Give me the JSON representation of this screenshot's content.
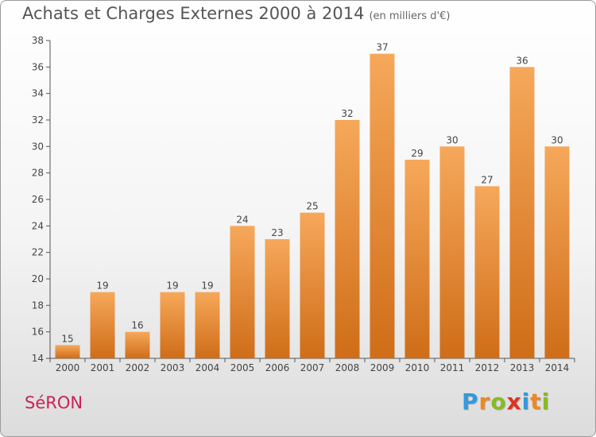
{
  "title": "Achats et Charges Externes 2000 à 2014",
  "unit_label": "(en milliers d'€)",
  "commune": "SéRON",
  "brand": {
    "letters": [
      "P",
      "r",
      "o",
      "x",
      "i",
      "t",
      "i"
    ],
    "colors": [
      "#3399dd",
      "#ee8822",
      "#88bb22",
      "#dd3322",
      "#3399dd",
      "#ee8822",
      "#88bb22"
    ]
  },
  "chart_data": {
    "type": "bar",
    "title": "Achats et Charges Externes 2000 à 2014",
    "categories": [
      "2000",
      "2001",
      "2002",
      "2003",
      "2004",
      "2005",
      "2006",
      "2007",
      "2008",
      "2009",
      "2010",
      "2011",
      "2012",
      "2013",
      "2014"
    ],
    "values": [
      15,
      19,
      16,
      19,
      19,
      24,
      23,
      25,
      32,
      37,
      29,
      30,
      27,
      36,
      30
    ],
    "xlabel": "",
    "ylabel": "",
    "ylim": [
      14,
      38
    ],
    "yticks": [
      14,
      16,
      18,
      20,
      22,
      24,
      26,
      28,
      30,
      32,
      34,
      36,
      38
    ],
    "grid": false,
    "bar_color": "#f0963c",
    "data_labels": true
  }
}
